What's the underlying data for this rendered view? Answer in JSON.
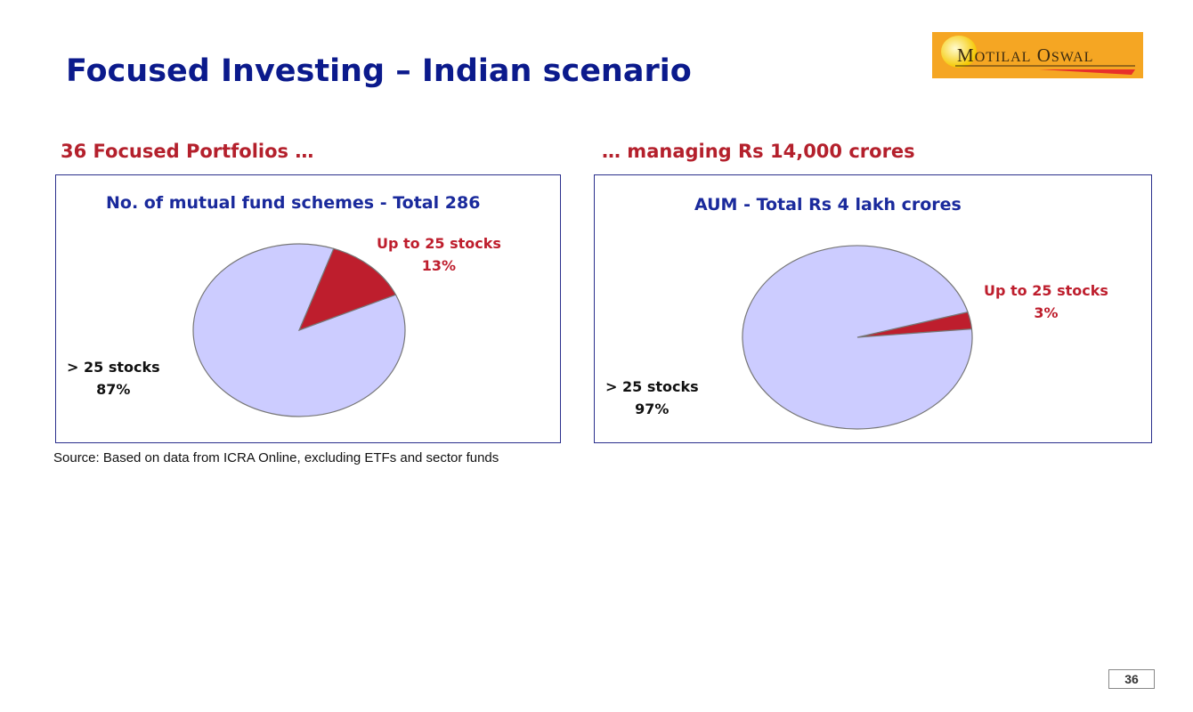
{
  "title": "Focused Investing – Indian scenario",
  "left_subtitle": "36 Focused Portfolios …",
  "right_subtitle": "… managing Rs 14,000 crores",
  "source": "Source:   Based on data from ICRA Online, excluding ETFs and sector funds",
  "logo_text": "MOTILAL OSWAL",
  "page_number": "36",
  "colors": {
    "large": "#ccccff",
    "small": "#be1e2d",
    "title": "#0b1a8c"
  },
  "chart_data": [
    {
      "type": "pie",
      "title": "No. of mutual fund schemes - Total 286",
      "slices": [
        {
          "label": "Up to 25 stocks",
          "value": 13,
          "value_label": "13%",
          "color": "#be1e2d"
        },
        {
          "label": "> 25 stocks",
          "value": 87,
          "value_label": "87%",
          "color": "#ccccff"
        }
      ]
    },
    {
      "type": "pie",
      "title": "AUM - Total Rs 4 lakh crores",
      "slices": [
        {
          "label": "Up to 25 stocks",
          "value": 3,
          "value_label": "3%",
          "color": "#be1e2d"
        },
        {
          "label": "> 25 stocks",
          "value": 97,
          "value_label": "97%",
          "color": "#ccccff"
        }
      ]
    }
  ]
}
